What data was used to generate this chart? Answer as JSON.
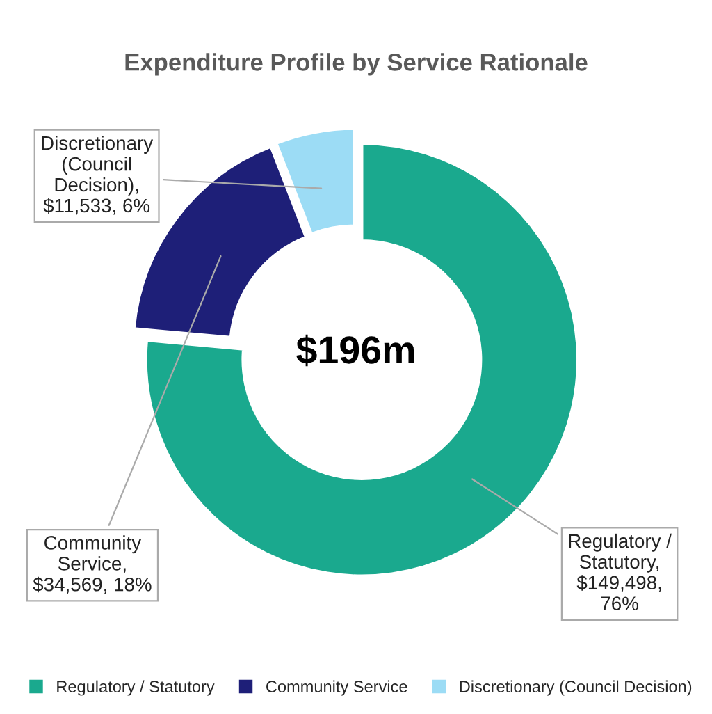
{
  "chart_data": {
    "type": "donut",
    "title": "Expenditure Profile by Service Rationale",
    "categories": [
      "Regulatory / Statutory",
      "Community Service",
      "Discretionary (Council Decision)"
    ],
    "values": [
      149498,
      34569,
      11533
    ],
    "colors": [
      "#1aa98e",
      "#1e1f78",
      "#9cdcf5"
    ],
    "value_labels": [
      "Regulatory /\nStatutory,\n$149,498,\n76%",
      "Community\nService,\n$34,569, 18%",
      "Discretionary\n(Council\nDecision),\n$11,533, 6%"
    ],
    "annotations": [
      "$196m"
    ],
    "legend": "bottom"
  }
}
